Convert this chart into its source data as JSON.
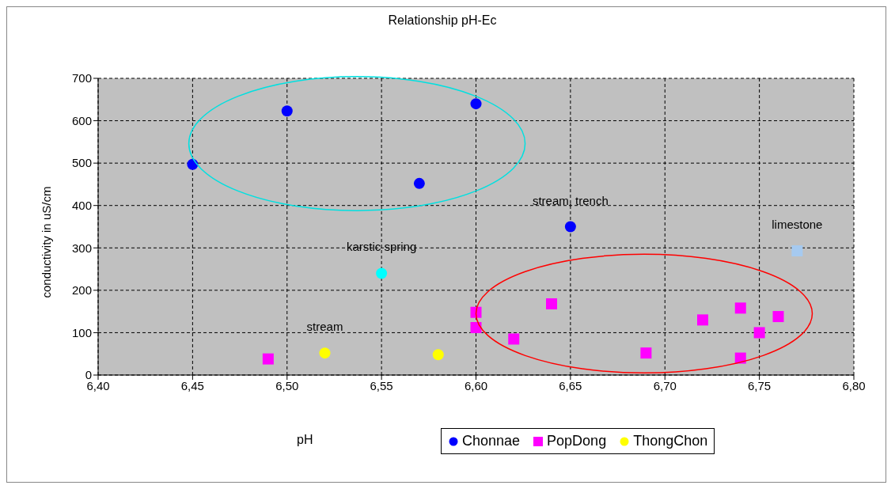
{
  "chart_data": {
    "type": "scatter",
    "title": "Relationship pH-Ec",
    "xlabel": "pH",
    "ylabel": "conductivity in uS/cm",
    "xlim": [
      6.4,
      6.8
    ],
    "xticks": [
      {
        "value": 6.4,
        "label": "6,40"
      },
      {
        "value": 6.45,
        "label": "6,45"
      },
      {
        "value": 6.5,
        "label": "6,50"
      },
      {
        "value": 6.55,
        "label": "6,55"
      },
      {
        "value": 6.6,
        "label": "6,60"
      },
      {
        "value": 6.65,
        "label": "6,65"
      },
      {
        "value": 6.7,
        "label": "6,70"
      },
      {
        "value": 6.75,
        "label": "6,75"
      },
      {
        "value": 6.8,
        "label": "6,80"
      }
    ],
    "ylim": [
      0,
      700
    ],
    "yticks": [
      0,
      100,
      200,
      300,
      400,
      500,
      600,
      700
    ],
    "grid": true,
    "legend": "bottom",
    "series": [
      {
        "name": "Chonnae",
        "color": "#0000ff",
        "marker": "circle",
        "x": [
          6.45,
          6.5,
          6.57,
          6.6,
          6.65
        ],
        "values": [
          497,
          623,
          452,
          640,
          350
        ]
      },
      {
        "name": "PopDong",
        "color": "#ff00ff",
        "marker": "square",
        "x": [
          6.49,
          6.6,
          6.6,
          6.62,
          6.64,
          6.69,
          6.72,
          6.74,
          6.74,
          6.75,
          6.76
        ],
        "values": [
          38,
          148,
          112,
          85,
          168,
          52,
          130,
          158,
          40,
          100,
          138
        ]
      },
      {
        "name": "ThongChon",
        "color": "#ffff00",
        "marker": "circle",
        "x": [
          6.52,
          6.58
        ],
        "values": [
          52,
          48
        ]
      },
      {
        "color": "#00ffff",
        "marker": "circle",
        "x": [
          6.55
        ],
        "values": [
          240
        ]
      },
      {
        "color": "#a6caf0",
        "marker": "square",
        "x": [
          6.77
        ],
        "values": [
          293
        ]
      }
    ],
    "annotations": [
      {
        "text": "stream, trench",
        "x": 6.65,
        "y": 350
      },
      {
        "text": "karstic spring",
        "x": 6.55,
        "y": 240
      },
      {
        "text": "limestone",
        "x": 6.77,
        "y": 293
      },
      {
        "text": "stream",
        "x": 6.52,
        "y": 52
      }
    ]
  }
}
